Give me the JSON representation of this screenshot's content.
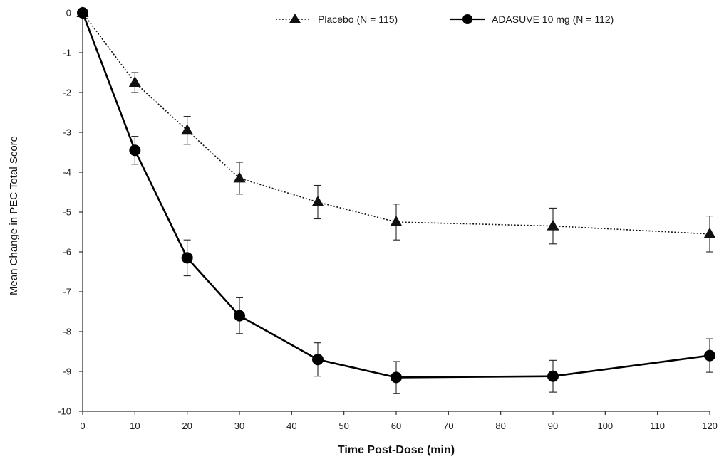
{
  "chart_data": {
    "type": "line",
    "xlabel": "Time Post-Dose (min)",
    "ylabel": "Mean Change in PEC Total Score",
    "xlim": [
      0,
      120
    ],
    "ylim": [
      -10,
      0
    ],
    "x_ticks": [
      0,
      10,
      20,
      30,
      40,
      50,
      60,
      70,
      80,
      90,
      100,
      110,
      120
    ],
    "y_ticks": [
      0,
      -1,
      -2,
      -3,
      -4,
      -5,
      -6,
      -7,
      -8,
      -9,
      -10
    ],
    "grid": false,
    "legend_position": "top-right",
    "x": [
      0,
      10,
      20,
      30,
      45,
      60,
      90,
      120
    ],
    "series": [
      {
        "name": "Placebo (N = 115)",
        "marker": "triangle",
        "line_style": "dotted",
        "color": "#111111",
        "values": [
          0,
          -1.75,
          -2.95,
          -4.15,
          -4.75,
          -5.25,
          -5.35,
          -5.55
        ],
        "error_bars": [
          0,
          0.25,
          0.35,
          0.4,
          0.42,
          0.45,
          0.45,
          0.45
        ]
      },
      {
        "name": "ADASUVE 10 mg (N = 112)",
        "marker": "circle",
        "line_style": "solid",
        "color": "#000000",
        "values": [
          0,
          -3.45,
          -6.15,
          -7.6,
          -8.7,
          -9.15,
          -9.12,
          -8.6
        ],
        "error_bars": [
          0,
          0.35,
          0.45,
          0.45,
          0.42,
          0.4,
          0.4,
          0.42
        ]
      }
    ]
  }
}
